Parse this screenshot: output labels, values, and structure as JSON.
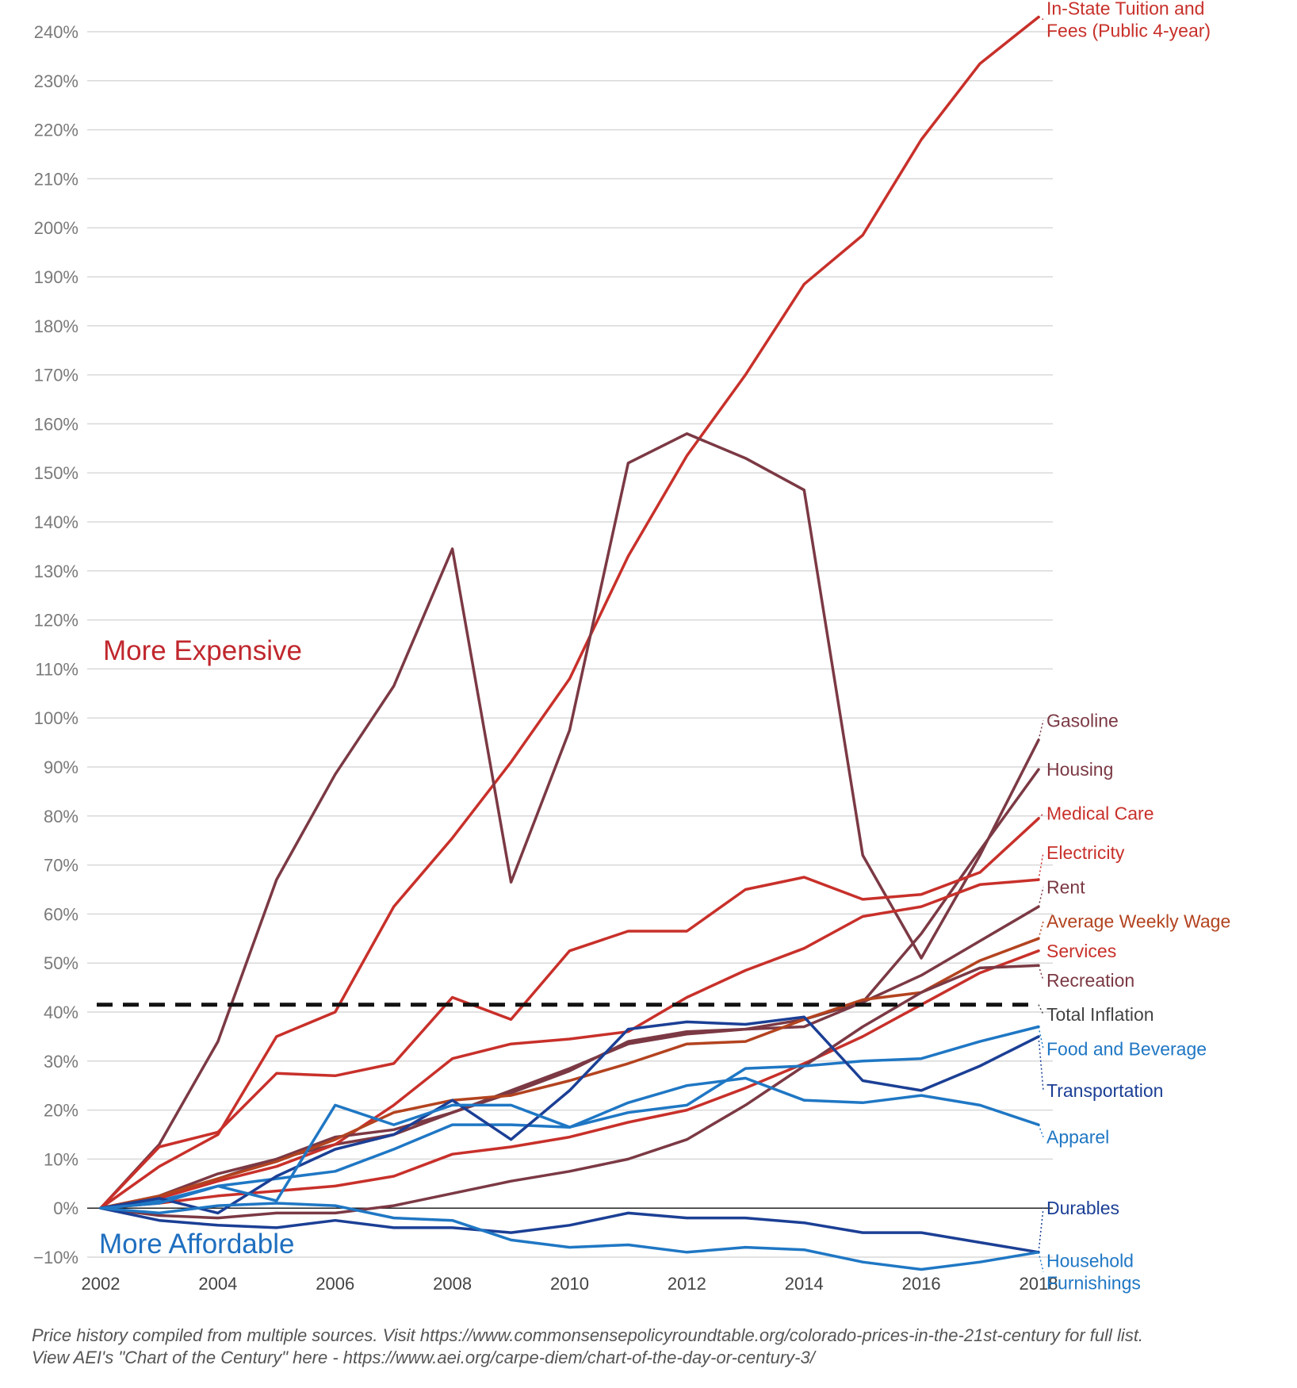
{
  "chart_data": {
    "type": "line",
    "title": "",
    "xlabel": "",
    "ylabel": "",
    "x": [
      2002,
      2003,
      2004,
      2005,
      2006,
      2007,
      2008,
      2009,
      2010,
      2011,
      2012,
      2013,
      2014,
      2015,
      2016,
      2017,
      2018
    ],
    "x_ticks": [
      "2002",
      "2004",
      "2006",
      "2008",
      "2010",
      "2012",
      "2014",
      "2016",
      "2018"
    ],
    "ylim": [
      -10,
      240
    ],
    "y_ticks": [
      "240%",
      "230%",
      "220%",
      "210%",
      "200%",
      "190%",
      "180%",
      "170%",
      "160%",
      "150%",
      "140%",
      "130%",
      "120%",
      "110%",
      "100%",
      "90%",
      "80%",
      "70%",
      "60%",
      "50%",
      "40%",
      "30%",
      "20%",
      "10%",
      "0%",
      "−10%"
    ],
    "grid": true,
    "reference_line": {
      "name": "Total Inflation",
      "value": 41.5,
      "style": "dashed",
      "color": "#111111"
    },
    "annotations": {
      "more_expensive": "More Expensive",
      "more_affordable": "More Affordable"
    },
    "series": [
      {
        "name": "In-State Tuition and Fees (Public 4-year)",
        "label_lines": [
          "In-State Tuition and",
          "Fees (Public 4-year)"
        ],
        "color": "#c8302a",
        "label_y": 242.5,
        "values": [
          0,
          8.5,
          15,
          35,
          40,
          61.5,
          75.5,
          91,
          108,
          133,
          153.5,
          170,
          188.5,
          198.5,
          218,
          233.5,
          243
        ]
      },
      {
        "name": "Gasoline",
        "label_lines": [
          "Gasoline"
        ],
        "color": "#7b3944",
        "label_y": 99.5,
        "values": [
          0,
          13,
          34,
          67,
          88.5,
          106.5,
          134.5,
          66.5,
          97.5,
          152,
          158,
          153,
          146.5,
          72,
          51,
          72,
          95.5
        ]
      },
      {
        "name": "Housing",
        "label_lines": [
          "Housing"
        ],
        "color": "#7b3944",
        "label_y": 89.5,
        "values": [
          0,
          2,
          6,
          10,
          13,
          15,
          19.5,
          23.5,
          28,
          34,
          36,
          36.5,
          37,
          42,
          56,
          73,
          89.5
        ]
      },
      {
        "name": "Medical Care",
        "label_lines": [
          "Medical Care"
        ],
        "color": "#c8302a",
        "label_y": 80.5,
        "values": [
          0,
          12.5,
          15.5,
          27.5,
          27,
          29.5,
          43,
          38.5,
          52.5,
          56.5,
          56.5,
          65,
          67.5,
          63,
          64,
          68.5,
          79.5
        ]
      },
      {
        "name": "Electricity",
        "label_lines": [
          "Electricity"
        ],
        "color": "#c8302a",
        "label_y": 72.5,
        "values": [
          0,
          2,
          5.5,
          8.5,
          13,
          21,
          30.5,
          33.5,
          34.5,
          36,
          43,
          48.5,
          53,
          59.5,
          61.5,
          66,
          67
        ]
      },
      {
        "name": "Rent",
        "label_lines": [
          "Rent"
        ],
        "color": "#7b3944",
        "label_y": 65.5,
        "values": [
          0,
          2.5,
          7,
          10,
          14.5,
          16,
          19.5,
          24,
          28.5,
          33.5,
          35.5,
          36.5,
          38.5,
          42,
          47.5,
          54.5,
          61.5
        ]
      },
      {
        "name": "Average Weekly Wage",
        "label_lines": [
          "Average Weekly Wage"
        ],
        "color": "#b3431f",
        "label_y": 58.5,
        "values": [
          0,
          2.5,
          6,
          9.5,
          14,
          19.5,
          22,
          23,
          26,
          29.5,
          33.5,
          34,
          38.5,
          42.5,
          44,
          50.5,
          55
        ]
      },
      {
        "name": "Services",
        "label_lines": [
          "Services"
        ],
        "color": "#c8302a",
        "label_y": 52.5,
        "values": [
          0,
          1,
          2.5,
          3.5,
          4.5,
          6.5,
          11,
          12.5,
          14.5,
          17.5,
          20,
          24.5,
          29.5,
          35,
          41.5,
          48,
          52.5
        ]
      },
      {
        "name": "Recreation",
        "label_lines": [
          "Recreation"
        ],
        "color": "#7b3944",
        "label_y": 46.5,
        "values": [
          0,
          -1.5,
          -2,
          -1,
          -1,
          0.5,
          3,
          5.5,
          7.5,
          10,
          14,
          21,
          29,
          37,
          44,
          49,
          49.5
        ]
      },
      {
        "name": "Food and Beverage",
        "label_lines": [
          "Food and Beverage"
        ],
        "color": "#1f77c4",
        "label_y": 32.5,
        "values": [
          0,
          1.5,
          4.5,
          6,
          7.5,
          12,
          17,
          17,
          16.5,
          19.5,
          21,
          28.5,
          29,
          30,
          30.5,
          34,
          37
        ]
      },
      {
        "name": "Transportation",
        "label_lines": [
          "Transportation"
        ],
        "color": "#1b3f95",
        "label_y": 24,
        "values": [
          0,
          2,
          -1,
          6.5,
          12,
          15,
          22,
          14,
          24,
          36.5,
          38,
          37.5,
          39,
          26,
          24,
          29,
          35
        ]
      },
      {
        "name": "Apparel",
        "label_lines": [
          "Apparel"
        ],
        "color": "#1f77c4",
        "label_y": 14.5,
        "values": [
          0,
          1,
          4.5,
          1.5,
          21,
          17,
          21,
          21,
          16.5,
          21.5,
          25,
          26.5,
          22,
          21.5,
          23,
          21,
          17
        ]
      },
      {
        "name": "Durables",
        "label_lines": [
          "Durables"
        ],
        "color": "#1b3f95",
        "label_y": 0,
        "values": [
          0,
          -2.5,
          -3.5,
          -4,
          -2.5,
          -4,
          -4,
          -5,
          -3.5,
          -1,
          -2,
          -2,
          -3,
          -5,
          -5,
          -7,
          -9
        ]
      },
      {
        "name": "Household Furnishings",
        "label_lines": [
          "Household",
          "Furnishings"
        ],
        "color": "#1f77c4",
        "label_y": -13,
        "values": [
          0,
          -1,
          0.5,
          1,
          0.5,
          -2,
          -2.5,
          -6.5,
          -8,
          -7.5,
          -9,
          -8,
          -8.5,
          -11,
          -12.5,
          -11,
          -9
        ]
      }
    ]
  },
  "footnote": {
    "line1": "Price history compiled from multiple sources. Visit https://www.commonsensepolicyroundtable.org/colorado-prices-in-the-21st-century for full list.",
    "line2": "View AEI's \"Chart of the Century\" here - https://www.aei.org/carpe-diem/chart-of-the-day-or-century-3/"
  }
}
